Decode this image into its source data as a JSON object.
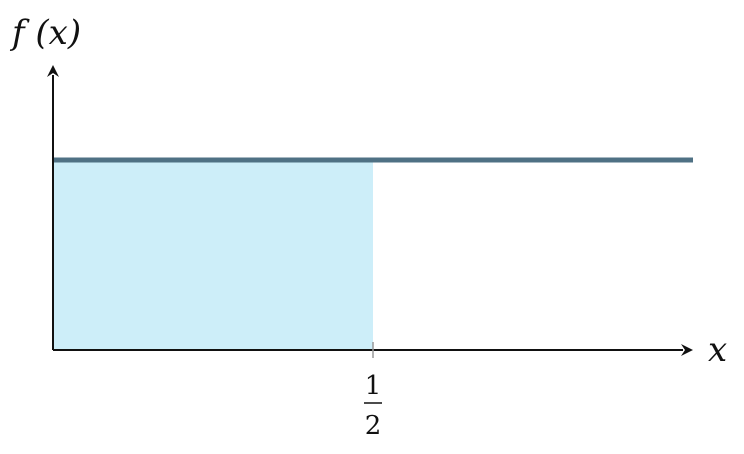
{
  "chart_data": {
    "type": "line",
    "ylabel": "f (x)",
    "xlabel": "x",
    "series": [
      {
        "x": [
          0,
          1
        ],
        "y": [
          1,
          1
        ]
      }
    ],
    "shaded_region": {
      "x_start": 0,
      "x_end": 0.5,
      "y_value": 1,
      "color": "#cdeef9"
    },
    "ticks": [
      {
        "x": 0.5,
        "label": {
          "numerator": "1",
          "denominator": "2"
        }
      }
    ],
    "xlim": [
      0,
      1
    ],
    "ylim": [
      0,
      1.5
    ],
    "grid": false
  },
  "colors": {
    "axis": "#111111",
    "line": "#4f7184",
    "shade": "#cdeef9",
    "tick": "#999999",
    "background": "#ffffff"
  }
}
